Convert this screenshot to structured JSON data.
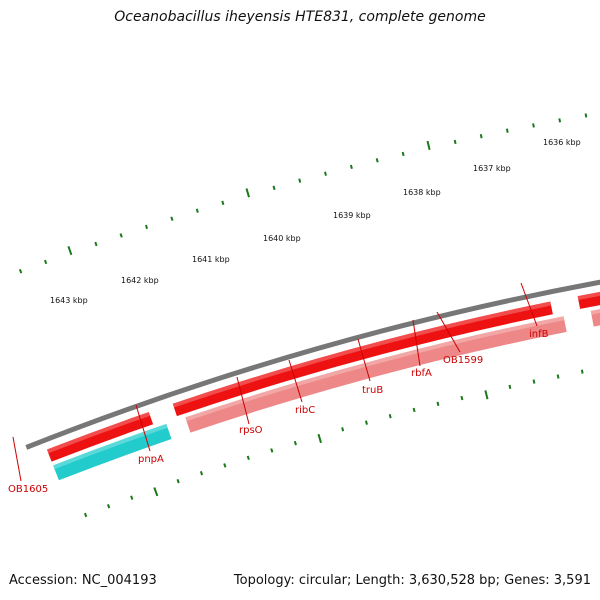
{
  "title": "Oceanobacillus iheyensis HTE831, complete genome",
  "accession": "Accession: NC_004193",
  "summary": "Topology: circular; Length: 3,630,528 bp; Genes: 3,591",
  "colors": {
    "backbone": "#777777",
    "tick": "#1a7a1a",
    "gene_red": "#ee1111",
    "gene_red_light": "#ee8888",
    "blue": "#1111cc",
    "cyan": "#22cccc",
    "gray": "#666666",
    "label": "#cc0000"
  },
  "scale_labels": [
    "1643 kbp",
    "1642 kbp",
    "1641 kbp",
    "1640 kbp",
    "1639 kbp",
    "1638 kbp",
    "1637 kbp",
    "1636 kbp"
  ],
  "gene_labels": [
    "OB1605",
    "pnpA",
    "rpsO",
    "ribC",
    "truB",
    "rbfA",
    "OB1599",
    "infB"
  ]
}
